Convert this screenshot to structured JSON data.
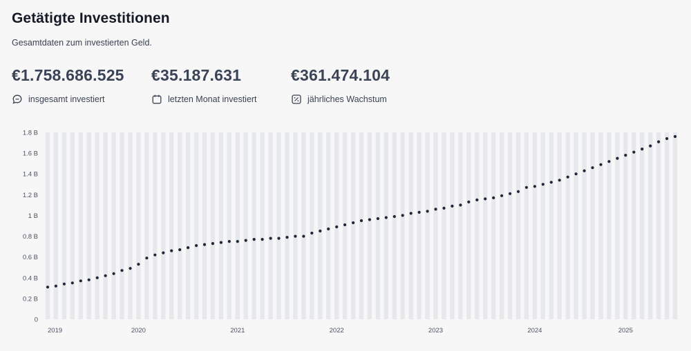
{
  "header": {
    "title": "Getätigte Investitionen",
    "subtitle": "Gesamtdaten zum investierten Geld."
  },
  "stats": [
    {
      "value": "€1.758.686.525",
      "label": "insgesamt investiert",
      "icon": "chat-bubble-icon"
    },
    {
      "value": "€35.187.631",
      "label": "letzten Monat investiert",
      "icon": "calendar-refresh-icon"
    },
    {
      "value": "€361.474.104",
      "label": "jährliches Wachstum",
      "icon": "percent-growth-icon"
    }
  ],
  "colors": {
    "dot": "#1f2737",
    "bar": "#e6e8ec",
    "value_text": "#3b4456",
    "title_text": "#141a26"
  },
  "chart_data": {
    "type": "scatter",
    "ylim": [
      0,
      1.8
    ],
    "yticks": [
      0,
      0.2,
      0.4,
      0.6,
      0.8,
      1,
      1.2,
      1.4,
      1.6,
      1.8
    ],
    "ytick_labels": [
      "0",
      "0.2 B",
      "0.4 B",
      "0.6 B",
      "0.8 B",
      "1 B",
      "1.2 B",
      "1.4 B",
      "1.6 B",
      "1.8 B"
    ],
    "xtick_labels": [
      "2019",
      "2020",
      "2021",
      "2022",
      "2023",
      "2024",
      "2025"
    ],
    "xtick_index": [
      0,
      11,
      23,
      35,
      47,
      59,
      70
    ],
    "background_bars": true,
    "values": [
      0.31,
      0.32,
      0.34,
      0.35,
      0.37,
      0.38,
      0.4,
      0.42,
      0.44,
      0.47,
      0.49,
      0.53,
      0.59,
      0.62,
      0.64,
      0.66,
      0.67,
      0.69,
      0.71,
      0.72,
      0.73,
      0.74,
      0.75,
      0.75,
      0.76,
      0.77,
      0.77,
      0.78,
      0.78,
      0.79,
      0.8,
      0.8,
      0.83,
      0.85,
      0.87,
      0.89,
      0.91,
      0.93,
      0.95,
      0.96,
      0.97,
      0.98,
      0.99,
      1.0,
      1.02,
      1.03,
      1.04,
      1.06,
      1.07,
      1.09,
      1.1,
      1.13,
      1.15,
      1.16,
      1.17,
      1.19,
      1.21,
      1.23,
      1.27,
      1.28,
      1.3,
      1.32,
      1.34,
      1.37,
      1.4,
      1.43,
      1.46,
      1.49,
      1.52,
      1.55,
      1.58,
      1.61,
      1.64,
      1.67,
      1.71,
      1.74,
      1.76
    ]
  }
}
